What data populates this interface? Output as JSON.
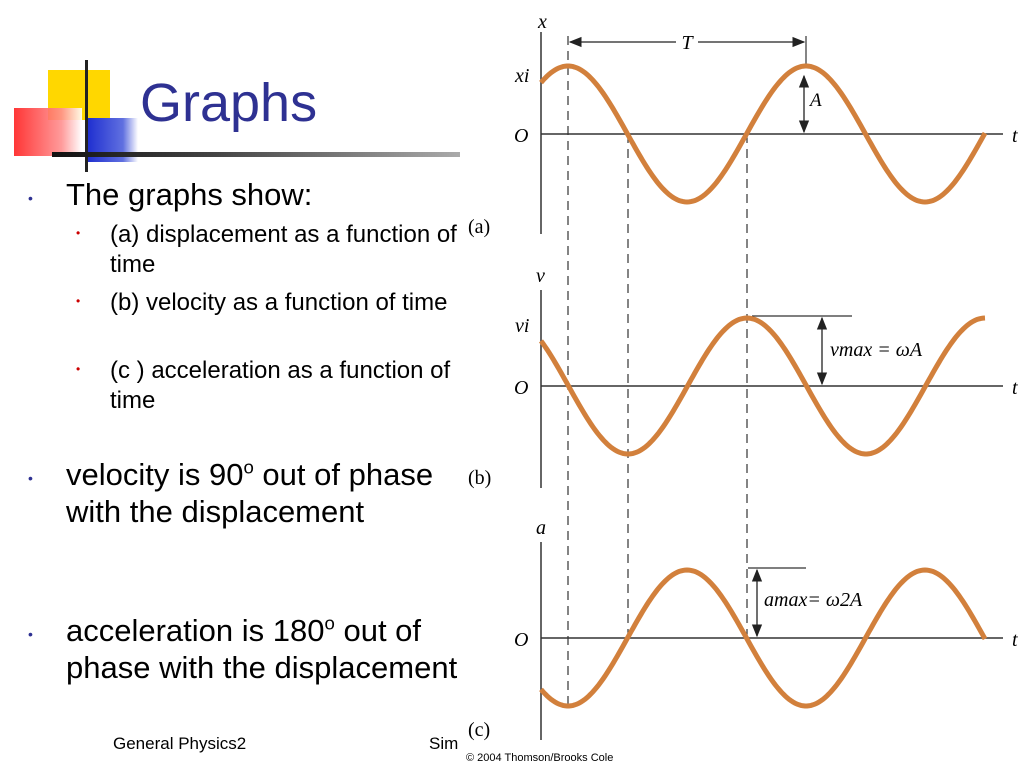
{
  "title": "Graphs",
  "bullets": [
    {
      "text": "The graphs show:",
      "sub": [
        "(a) displacement as a function of time",
        "(b) velocity as a function of time",
        "(c ) acceleration as a function of time"
      ]
    },
    {
      "prefix": "velocity is 90",
      "sup": "o",
      "suffix": " out of phase with the displacement"
    },
    {
      "prefix": "acceleration is 180",
      "sup": "o",
      "suffix": " out of phase with the displacement"
    }
  ],
  "footer": {
    "left": "General Physics2",
    "mid": "Sim"
  },
  "figure": {
    "copyright": "© 2004 Thomson/Brooks Cole",
    "period_label": "T",
    "amplitude_label": "A",
    "origin_label": "O",
    "time_label": "t",
    "panels": [
      {
        "id": "a",
        "label": "(a)",
        "y_axis": "x",
        "initial_label": "xi"
      },
      {
        "id": "b",
        "label": "(b)",
        "y_axis": "v",
        "initial_label": "vi",
        "max_label": "vmax = ωA"
      },
      {
        "id": "c",
        "label": "(c)",
        "y_axis": "a",
        "max_label": "amax= ω2A"
      }
    ]
  },
  "colors": {
    "title": "#2E3192",
    "curve": "#D2803C",
    "accent_yellow": "#FFD700",
    "accent_blue": "#2030D0",
    "accent_red": "#FF3030"
  }
}
